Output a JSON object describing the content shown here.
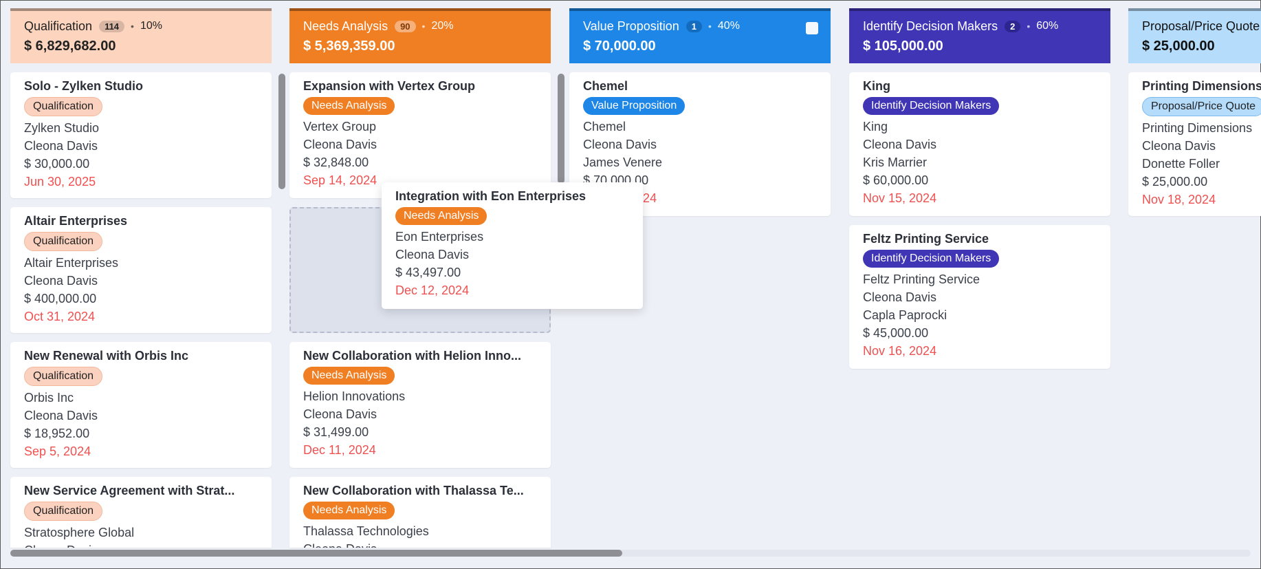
{
  "colors": {
    "qualification": "#fdd5bf",
    "needs_analysis": "#f07e22",
    "value_proposition": "#1d86e6",
    "identify_decision_makers": "#3f35b5",
    "proposal": "#b5dcfb",
    "overdue_date": "#f05050"
  },
  "columns": [
    {
      "title": "Qualification",
      "count": "114",
      "pct": "10%",
      "amount": "$ 6,829,682.00",
      "cards": [
        {
          "title": "Solo - Zylken Studio",
          "stage": "Qualification",
          "lines": [
            "Zylken Studio",
            "Cleona Davis",
            "$ 30,000.00"
          ],
          "date": "Jun 30, 2025"
        },
        {
          "title": "Altair Enterprises",
          "stage": "Qualification",
          "lines": [
            "Altair Enterprises",
            "Cleona Davis",
            "$ 400,000.00"
          ],
          "date": "Oct 31, 2024"
        },
        {
          "title": "New Renewal with Orbis Inc",
          "stage": "Qualification",
          "lines": [
            "Orbis Inc",
            "Cleona Davis",
            "$ 18,952.00"
          ],
          "date": "Sep 5, 2024"
        },
        {
          "title": "New Service Agreement with Strat...",
          "stage": "Qualification",
          "lines": [
            "Stratosphere Global",
            "Cleona Davis"
          ]
        }
      ]
    },
    {
      "title": "Needs Analysis",
      "count": "90",
      "pct": "20%",
      "amount": "$ 5,369,359.00",
      "cards": [
        {
          "title": "Expansion with Vertex Group",
          "stage": "Needs Analysis",
          "lines": [
            "Vertex Group",
            "Cleona Davis",
            "$ 32,848.00"
          ],
          "date": "Sep 14, 2024"
        },
        {
          "title": "New Collaboration with Helion Inno...",
          "stage": "Needs Analysis",
          "lines": [
            "Helion Innovations",
            "Cleona Davis",
            "$ 31,499.00"
          ],
          "date": "Dec 11, 2024"
        },
        {
          "title": "New Collaboration with Thalassa Te...",
          "stage": "Needs Analysis",
          "lines": [
            "Thalassa Technologies",
            "Cleona Davis"
          ]
        }
      ]
    },
    {
      "title": "Value Proposition",
      "count": "1",
      "pct": "40%",
      "amount": "$ 70,000.00",
      "cards": [
        {
          "title": "Chemel",
          "stage": "Value Proposition",
          "lines": [
            "Chemel",
            "Cleona Davis",
            "James Venere",
            "$ 70,000.00"
          ],
          "date": "Nov 14, 2024"
        }
      ]
    },
    {
      "title": "Identify Decision Makers",
      "count": "2",
      "pct": "60%",
      "amount": "$ 105,000.00",
      "cards": [
        {
          "title": "King",
          "stage": "Identify Decision Makers",
          "lines": [
            "King",
            "Cleona Davis",
            "Kris Marrier",
            "$ 60,000.00"
          ],
          "date": "Nov 15, 2024"
        },
        {
          "title": "Feltz Printing Service",
          "stage": "Identify Decision Makers",
          "lines": [
            "Feltz Printing Service",
            "Cleona Davis",
            "Capla Paprocki",
            "$ 45,000.00"
          ],
          "date": "Nov 16, 2024"
        }
      ]
    },
    {
      "title": "Proposal/Price Quote",
      "amount": "$ 25,000.00",
      "cards": [
        {
          "title": "Printing Dimensions",
          "stage": "Proposal/Price Quote",
          "lines": [
            "Printing Dimensions",
            "Cleona Davis",
            "Donette Foller",
            "$ 25,000.00"
          ],
          "date": "Nov 18, 2024"
        }
      ]
    }
  ],
  "dragging_card": {
    "title": "Integration with Eon Enterprises",
    "stage": "Needs Analysis",
    "lines": [
      "Eon Enterprises",
      "Cleona Davis",
      "$ 43,497.00"
    ],
    "date": "Dec 12, 2024"
  }
}
